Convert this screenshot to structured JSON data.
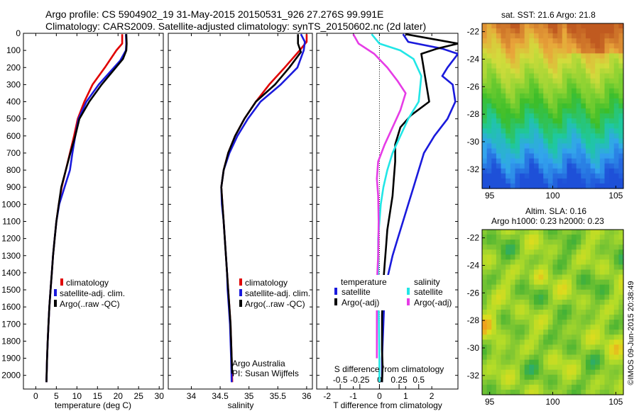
{
  "header": {
    "line1": "Argo profile: CS 5904902_19 31-May-2015 20150531_926 27.276S 99.991E",
    "line2": "Climatology: CARS2009. Satellite-adjusted climatology: synTS_20150602.nc (2d later)"
  },
  "credits": {
    "org": "Argo Australia",
    "pi": "PI: Susan Wijffels",
    "imos": "©IMOS 09-Jun-2015 20:38:49"
  },
  "colors": {
    "climatology": "#e00000",
    "satellite": "#1a1adc",
    "argo": "#000000",
    "sal_satellite": "#22e6e6",
    "sal_argo": "#e63ce6"
  },
  "chart_data": [
    {
      "type": "line",
      "id": "temperature",
      "xlabel": "temperature (deg C)",
      "ylabel": "",
      "xlim": [
        -3,
        31
      ],
      "ylim": [
        2080,
        0
      ],
      "xticks": [
        0,
        5,
        10,
        15,
        20,
        25,
        30
      ],
      "yticks": [
        0,
        100,
        200,
        300,
        400,
        500,
        600,
        700,
        800,
        900,
        1000,
        1100,
        1200,
        1300,
        1400,
        1500,
        1600,
        1700,
        1800,
        1900,
        2000
      ],
      "legend": {
        "location": "lower-left",
        "entries": [
          "climatology",
          "satellite-adj. clim.",
          "Argo(..raw -QC)"
        ]
      },
      "series": [
        {
          "name": "climatology",
          "color": "#e00000",
          "x": [
            21.0,
            21.0,
            19.6,
            16.8,
            13.8,
            11.8,
            10.2,
            9.3,
            8.3,
            7.3,
            6.3,
            5.6,
            5.0,
            4.6,
            4.2,
            3.9,
            3.6,
            3.3,
            3.1,
            2.9,
            2.75,
            2.6
          ],
          "y": [
            5,
            60,
            100,
            200,
            300,
            400,
            500,
            600,
            700,
            800,
            900,
            1000,
            1100,
            1200,
            1300,
            1400,
            1500,
            1600,
            1700,
            1800,
            1900,
            2040
          ]
        },
        {
          "name": "satellite-adj. clim.",
          "color": "#1a1adc",
          "x": [
            21.9,
            22.0,
            21.9,
            20.5,
            15.3,
            12.3,
            10.4,
            9.6,
            8.9,
            8.3,
            7.0,
            5.7,
            5.0,
            4.6,
            4.2,
            3.9,
            3.6,
            3.3,
            3.1,
            2.9,
            2.75,
            2.6
          ],
          "y": [
            5,
            60,
            100,
            160,
            300,
            400,
            500,
            600,
            700,
            800,
            900,
            1000,
            1100,
            1200,
            1300,
            1400,
            1500,
            1600,
            1700,
            1800,
            1900,
            2040
          ]
        },
        {
          "name": "Argo(..raw -QC)",
          "color": "#000000",
          "x": [
            22.0,
            22.1,
            22.0,
            21.2,
            16.0,
            13.0,
            10.6,
            9.6,
            8.4,
            7.3,
            6.2,
            5.6,
            5.0,
            4.6,
            4.2,
            3.9,
            3.6,
            3.3,
            3.1,
            2.9,
            2.75,
            2.6
          ],
          "y": [
            5,
            60,
            100,
            150,
            300,
            400,
            500,
            600,
            700,
            800,
            900,
            1000,
            1100,
            1200,
            1300,
            1400,
            1500,
            1600,
            1700,
            1800,
            1900,
            2040
          ]
        }
      ]
    },
    {
      "type": "line",
      "id": "salinity",
      "xlabel": "salinity",
      "ylabel": "",
      "xlim": [
        33.6,
        36.1
      ],
      "ylim": [
        2080,
        0
      ],
      "xticks": [
        34,
        34.5,
        35,
        35.5,
        36
      ],
      "legend": {
        "location": "lower-right",
        "entries": [
          "climatology",
          "satellite-adj. clim.",
          "Argo(..raw -QC)"
        ]
      },
      "series": [
        {
          "name": "climatology",
          "color": "#e00000",
          "x": [
            36.0,
            36.0,
            35.88,
            35.62,
            35.35,
            35.12,
            34.92,
            34.76,
            34.64,
            34.56,
            34.52,
            34.54,
            34.56,
            34.58,
            34.6,
            34.62,
            34.64,
            34.66,
            34.68,
            34.69,
            34.7,
            34.71
          ],
          "y": [
            5,
            50,
            100,
            200,
            300,
            400,
            500,
            600,
            700,
            800,
            900,
            1000,
            1100,
            1200,
            1300,
            1400,
            1500,
            1600,
            1700,
            1800,
            1900,
            2040
          ]
        },
        {
          "name": "satellite-adj. clim.",
          "color": "#1a1adc",
          "x": [
            35.9,
            35.97,
            35.95,
            35.84,
            35.55,
            35.2,
            34.98,
            34.8,
            34.66,
            34.56,
            34.52,
            34.53,
            34.56,
            34.58,
            34.6,
            34.62,
            34.63,
            34.65,
            34.67,
            34.68,
            34.69,
            34.7
          ],
          "y": [
            5,
            50,
            100,
            200,
            300,
            400,
            500,
            600,
            700,
            800,
            900,
            1000,
            1100,
            1200,
            1300,
            1400,
            1500,
            1600,
            1700,
            1800,
            1900,
            2040
          ]
        },
        {
          "name": "Argo(..raw -QC)",
          "color": "#000000",
          "x": [
            35.85,
            35.85,
            35.9,
            35.7,
            35.45,
            35.12,
            34.92,
            34.76,
            34.64,
            34.56,
            34.52,
            34.54,
            34.56,
            34.58,
            34.6,
            34.62,
            34.64,
            34.66,
            34.68,
            34.69,
            34.7,
            34.71
          ],
          "y": [
            5,
            60,
            110,
            200,
            300,
            400,
            500,
            600,
            700,
            800,
            900,
            1000,
            1100,
            1200,
            1300,
            1400,
            1500,
            1600,
            1700,
            1800,
            1900,
            1990
          ]
        }
      ]
    },
    {
      "type": "line",
      "id": "difference",
      "xlabel": "T difference from climatology",
      "title": "S difference from climatology",
      "xlim": [
        -2.4,
        3.0
      ],
      "ylim": [
        2080,
        0
      ],
      "xticks": [
        -2,
        -1,
        0,
        1,
        2
      ],
      "s_ticks_labels": [
        "-0.5",
        "-0.25",
        "0",
        "0.25",
        "0.5"
      ],
      "s_ticks_x_tunits": [
        -1.5,
        -0.75,
        0,
        0.75,
        1.5
      ],
      "zero_line": 0,
      "legend": {
        "location": "lower-center",
        "temperature_header": "temperature",
        "salinity_header": "salinity",
        "entries": [
          "satellite",
          "Argo(-adj)",
          "satellite",
          "Argo(-adj)"
        ]
      },
      "series": [
        {
          "name": "temperature satellite",
          "color": "#1a1adc",
          "x": [
            0.9,
            1.1,
            2.4,
            3.0,
            2.6,
            2.4,
            2.8,
            2.9,
            2.6,
            2.1,
            1.7,
            1.5,
            1.3,
            1.1,
            0.9,
            0.7,
            0.5,
            0.35,
            0.2,
            0.15,
            0.1,
            0.1
          ],
          "y": [
            5,
            50,
            90,
            120,
            200,
            250,
            300,
            400,
            500,
            600,
            700,
            800,
            900,
            1000,
            1100,
            1200,
            1300,
            1400,
            1500,
            1700,
            1900,
            2040
          ]
        },
        {
          "name": "temperature Argo(-adj)",
          "color": "#000000",
          "x": [
            1.0,
            3.0,
            2.2,
            1.6,
            1.9,
            1.2,
            0.8,
            0.6,
            0.6,
            0.55,
            0.5,
            0.4,
            0.3,
            0.25,
            0.2,
            0.15,
            0.12,
            0.1,
            0.1,
            0.1,
            0.12,
            0.1
          ],
          "y": [
            5,
            60,
            90,
            120,
            400,
            480,
            550,
            650,
            750,
            850,
            950,
            1050,
            1150,
            1250,
            1350,
            1450,
            1550,
            1650,
            1750,
            1850,
            1950,
            2040
          ]
        },
        {
          "name": "salinity satellite",
          "color": "#22e6e6",
          "x": [
            -0.3,
            0.0,
            0.8,
            1.3,
            1.6,
            1.5,
            1.1,
            0.8,
            0.5,
            0.3,
            0.15,
            0.05,
            0.0,
            -0.05,
            -0.05,
            -0.05,
            -0.05,
            -0.03,
            -0.02,
            0.0,
            0.0
          ],
          "y": [
            5,
            60,
            100,
            150,
            250,
            400,
            500,
            600,
            700,
            800,
            900,
            1000,
            1100,
            1200,
            1300,
            1400,
            1500,
            1600,
            1700,
            1900,
            2040
          ]
        },
        {
          "name": "salinity Argo(-adj)",
          "color": "#e63ce6",
          "x": [
            -1.0,
            -0.8,
            -0.2,
            0.3,
            0.7,
            1.0,
            0.8,
            0.5,
            0.2,
            -0.05,
            -0.1,
            -0.05,
            -0.03,
            -0.05,
            -0.08,
            -0.1,
            -0.1
          ],
          "y": [
            5,
            60,
            120,
            200,
            280,
            350,
            450,
            550,
            650,
            750,
            850,
            950,
            1100,
            1300,
            1400,
            1500,
            1900
          ]
        }
      ]
    },
    {
      "type": "heatmap",
      "id": "sst-map",
      "title": "sat. SST: 21.6 Argo: 21.8",
      "xlim": [
        94.4,
        105.6
      ],
      "ylim": [
        -33.4,
        -21.4
      ],
      "xticks": [
        95,
        100,
        105
      ],
      "yticks": [
        -22,
        -24,
        -26,
        -28,
        -30,
        -32
      ],
      "colorscale": [
        "#1e50d8",
        "#33a4ee",
        "#1ec8a0",
        "#3cbe2a",
        "#8cd232",
        "#d2dc3c",
        "#e8a43a",
        "#c05a20"
      ],
      "value_range": [
        16,
        25
      ],
      "profile_location": {
        "lon": 99.991,
        "lat": -27.276
      }
    },
    {
      "type": "heatmap",
      "id": "sla-map",
      "title": "Altim. SLA: 0.16",
      "subtitle": "Argo h1000: 0.23 h2000: 0.23",
      "xlim": [
        94.4,
        105.6
      ],
      "ylim": [
        -33.4,
        -21.4
      ],
      "xticks": [
        95,
        100,
        105
      ],
      "yticks": [
        -22,
        -24,
        -26,
        -28,
        -30,
        -32
      ],
      "colorscale": [
        "#1eaa8a",
        "#46b232",
        "#82c832",
        "#b4dc28",
        "#dcdc1e",
        "#f0a01e"
      ],
      "profile_location": {
        "lon": 99.991,
        "lat": -27.276
      }
    }
  ]
}
